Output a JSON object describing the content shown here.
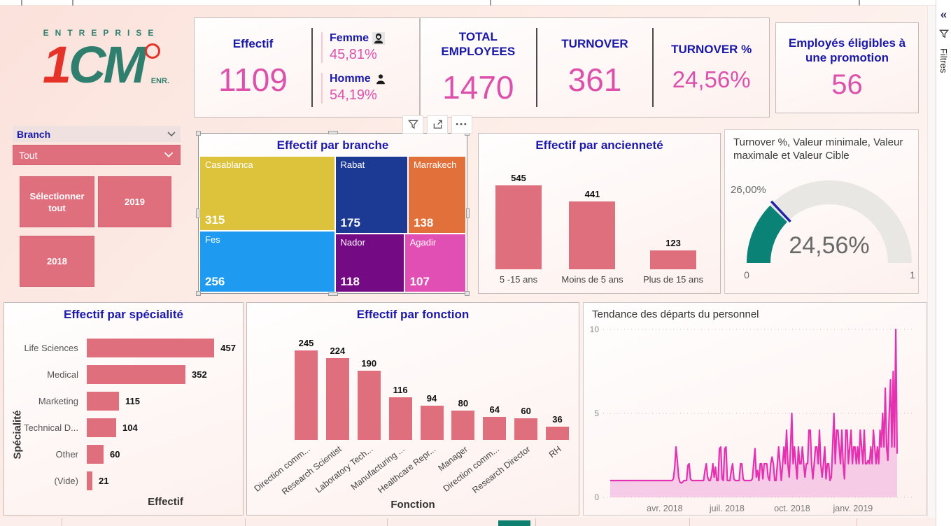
{
  "logo": {
    "top": "ENTREPRISE",
    "main_1": "1",
    "main_2": "CM",
    "suffix": "ENR."
  },
  "filters_pane": {
    "collapse_icon": "«",
    "label": "Filtres"
  },
  "kpi": {
    "effectif": {
      "title": "Effectif",
      "value": "1109"
    },
    "femme": {
      "label": "Femme",
      "value": "45,81%"
    },
    "homme": {
      "label": "Homme",
      "value": "54,19%"
    },
    "total_employees": {
      "title": "TOTAL EMPLOYEES",
      "value": "1470"
    },
    "turnover": {
      "title": "TURNOVER",
      "value": "361"
    },
    "turnover_pct": {
      "title": "TURNOVER %",
      "value": "24,56%"
    },
    "promotion": {
      "title": "Employés éligibles à une promotion",
      "value": "56"
    }
  },
  "slicers": {
    "branch": {
      "label": "Branch",
      "selected": "Tout"
    },
    "year": {
      "buttons": [
        "Sélectionner tout",
        "2019",
        "2018"
      ]
    }
  },
  "colors": {
    "navy": "#1a18a9",
    "pink": "#dd50ab",
    "rose": "#df6f7d",
    "teal": "#0a8276",
    "line_magenta": "#e531b1",
    "area_pink": "#f2c0e3"
  },
  "chart_data": [
    {
      "id": "effectif_par_branche",
      "type": "treemap",
      "title": "Effectif par branche",
      "items": [
        {
          "label": "Casablanca",
          "value": 315,
          "color": "#ddc23b",
          "rect": {
            "x": 0,
            "y": 0,
            "w": 50.8,
            "h": 55.1
          }
        },
        {
          "label": "Fes",
          "value": 256,
          "color": "#1e9bf0",
          "rect": {
            "x": 0,
            "y": 55.1,
            "w": 50.8,
            "h": 44.9
          }
        },
        {
          "label": "Rabat",
          "value": 175,
          "color": "#1c3a94",
          "rect": {
            "x": 50.8,
            "y": 0,
            "w": 27.4,
            "h": 57.1
          }
        },
        {
          "label": "Marrakech",
          "value": 138,
          "color": "#e2703a",
          "rect": {
            "x": 78.2,
            "y": 0,
            "w": 21.8,
            "h": 57.1
          }
        },
        {
          "label": "Nador",
          "value": 118,
          "color": "#750b84",
          "rect": {
            "x": 50.8,
            "y": 57.1,
            "w": 26.0,
            "h": 42.9
          }
        },
        {
          "label": "Agadir",
          "value": 107,
          "color": "#e24fb4",
          "rect": {
            "x": 76.8,
            "y": 57.1,
            "w": 23.2,
            "h": 42.9
          }
        }
      ]
    },
    {
      "id": "effectif_par_anciennete",
      "type": "bar",
      "title": "Effectif par ancienneté",
      "categories": [
        "5 -15 ans",
        "Moins de 5 ans",
        "Plus de 15 ans"
      ],
      "values": [
        545,
        441,
        123
      ],
      "color": "#df6f7d",
      "ylim": [
        0,
        545
      ]
    },
    {
      "id": "turnover_gauge",
      "type": "gauge",
      "title": "Turnover %, Valeur minimale, Valeur maximale et Valeur Cible",
      "value": 0.2456,
      "value_label": "24,56%",
      "target": 0.26,
      "target_label": "26,00%",
      "min": 0,
      "max": 1,
      "min_label": "0",
      "max_label": "1",
      "fill_color": "#0a8276",
      "track_color": "#e9e7e3",
      "target_color": "#2323a8"
    },
    {
      "id": "effectif_par_specialite",
      "type": "bar-horizontal",
      "title": "Effectif par spécialité",
      "categories": [
        "Life Sciences",
        "Medical",
        "Marketing",
        "Technical D...",
        "Other",
        "(Vide)"
      ],
      "values": [
        457,
        352,
        115,
        104,
        60,
        21
      ],
      "color": "#df6f7d",
      "xlabel": "Effectif",
      "ylabel": "Spécialité",
      "xlim": [
        0,
        457
      ]
    },
    {
      "id": "effectif_par_fonction",
      "type": "bar",
      "title": "Effectif par fonction",
      "categories": [
        "Direction comm...",
        "Research Scientist",
        "Laboratory Tech...",
        "Manufacturing ...",
        "Healthcare Repr...",
        "Manager",
        "Direction comm...",
        "Research Director",
        "RH"
      ],
      "values": [
        245,
        224,
        190,
        116,
        94,
        80,
        64,
        60,
        36
      ],
      "color": "#df6f7d",
      "xlabel": "Fonction",
      "ylabel": "Effectif",
      "ylim": [
        0,
        245
      ]
    },
    {
      "id": "tendance_departs",
      "type": "area-line",
      "title": "Tendance des départs du personnel",
      "ylim": [
        0,
        10
      ],
      "y_ticks": [
        0,
        5,
        10
      ],
      "x_ticks": [
        {
          "label": "avr. 2018",
          "f": 0.19
        },
        {
          "label": "juil. 2018",
          "f": 0.407
        },
        {
          "label": "oct. 2018",
          "f": 0.634
        },
        {
          "label": "janv. 2019",
          "f": 0.846
        }
      ],
      "line_color": "#e531b1",
      "area_color": "#f2c0e3",
      "values": [
        1,
        1,
        1,
        1,
        1,
        1,
        1,
        1,
        1,
        1,
        1,
        1,
        1,
        1,
        1,
        1,
        1,
        1,
        1,
        1,
        1,
        1,
        1,
        1,
        1,
        1,
        1,
        1,
        1,
        1,
        1,
        1,
        1,
        1,
        1,
        1,
        1,
        1,
        1,
        1,
        1,
        1,
        1,
        1,
        1,
        1,
        1,
        1,
        1.1,
        1.8,
        3,
        2.2,
        1.2,
        0.9,
        0.85,
        0.9,
        1,
        1,
        1,
        1.9,
        2,
        1.1,
        1,
        1,
        1,
        1,
        1,
        1,
        1,
        1,
        1,
        1,
        1.6,
        2,
        1.2,
        1,
        1,
        1.3,
        2,
        1.2,
        1.8,
        1,
        1,
        2.9,
        3,
        1.1,
        1,
        2.9,
        3,
        1,
        1,
        1,
        1.6,
        2,
        1.1,
        1,
        1,
        1,
        1,
        2,
        2,
        1.1,
        1,
        1,
        1,
        1,
        1,
        1,
        1.1,
        2,
        2.9,
        1.2,
        1.6,
        1,
        2,
        2,
        1.1,
        2,
        2,
        2,
        1.2,
        1,
        2,
        2.4,
        2,
        1,
        1,
        2,
        3,
        2,
        1,
        2,
        3,
        2,
        4,
        2,
        1.2,
        3,
        5,
        2,
        3,
        2,
        1.1,
        3,
        2,
        2,
        3,
        2,
        1.2,
        2,
        2,
        4,
        4,
        2,
        1.1,
        2,
        3,
        3,
        2,
        4,
        2,
        1.2,
        2,
        3,
        1.1,
        2,
        2,
        1,
        1.2,
        3,
        5,
        2,
        4,
        4,
        3,
        2,
        4,
        2,
        1.1,
        4,
        4,
        2,
        3,
        4,
        2,
        3,
        3,
        2,
        3,
        2,
        4,
        3,
        2,
        4,
        2,
        2,
        2.2,
        2,
        3,
        2,
        4,
        3,
        2,
        3,
        2,
        4,
        3,
        5,
        3,
        6.5,
        3,
        2.2,
        5,
        7,
        3,
        7.5,
        3,
        10,
        2.6
      ]
    }
  ]
}
